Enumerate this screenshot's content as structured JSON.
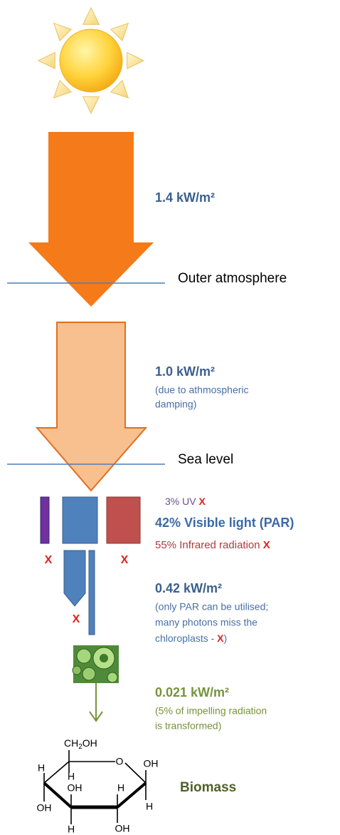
{
  "stages": [
    {
      "amount": "1.4 kW/m²"
    },
    {
      "amount": "1.0 kW/m²",
      "note": [
        "(due to athmospheric",
        "damping)"
      ]
    },
    {
      "amount": "0.42 kW/m²",
      "note": [
        "(only PAR can be utilised;",
        "many photons miss the",
        "chloroplasts - "
      ],
      "note_mark": "X",
      "note_end": ")"
    },
    {
      "amount": "0.021 kW/m²",
      "note": [
        "(5% of impelling radiation",
        "is transformed)"
      ]
    }
  ],
  "levels": {
    "outer": "Outer atmosphere",
    "sea": "Sea level"
  },
  "spectrum": [
    {
      "label": "3% UV",
      "mark": "X"
    },
    {
      "label": "42% Visible light (PAR)"
    },
    {
      "label": "55% Infrared radiation",
      "mark": "X"
    }
  ],
  "loss_marks": [
    "X",
    "X",
    "X"
  ],
  "molecule": {
    "side_chain": [
      "CH",
      "2",
      "OH"
    ],
    "atoms": [
      "O",
      "OH",
      "H",
      "H",
      "OH",
      "H",
      "OH",
      "H",
      "H",
      "OH"
    ]
  },
  "product": "Biomass"
}
